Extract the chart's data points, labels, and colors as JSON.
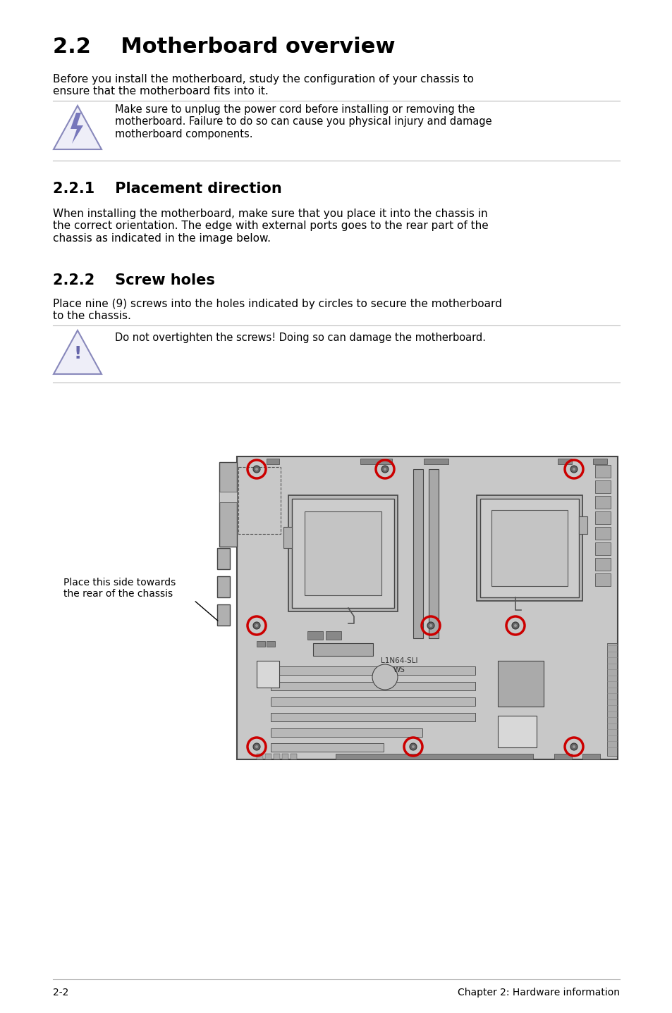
{
  "title": "2.2    Motherboard overview",
  "intro_text": "Before you install the motherboard, study the configuration of your chassis to\nensure that the motherboard fits into it.",
  "warning_text": "Make sure to unplug the power cord before installing or removing the\nmotherboard. Failure to do so can cause you physical injury and damage\nmotherboard components.",
  "section221_title": "2.2.1    Placement direction",
  "section221_text": "When installing the motherboard, make sure that you place it into the chassis in\nthe correct orientation. The edge with external ports goes to the rear part of the\nchassis as indicated in the image below.",
  "section222_title": "2.2.2    Screw holes",
  "section222_text": "Place nine (9) screws into the holes indicated by circles to secure the motherboard\nto the chassis.",
  "caution_text": "Do not overtighten the screws! Doing so can damage the motherboard.",
  "annotation_text": "Place this side towards\nthe rear of the chassis",
  "board_label_line1": "L1N64-SLI",
  "board_label_line2": "WS",
  "page_left": "2-2",
  "page_right": "Chapter 2: Hardware information",
  "bg_color": "#ffffff",
  "text_color": "#000000",
  "board_color": "#c8c8c8",
  "board_border": "#444444",
  "screw_color": "#cc0000",
  "icon_fill": "#eeeef8",
  "icon_edge": "#8888bb",
  "line_color": "#bbbbbb",
  "dark_comp": "#888888",
  "mid_comp": "#aaaaaa",
  "light_comp": "#d8d8d8"
}
